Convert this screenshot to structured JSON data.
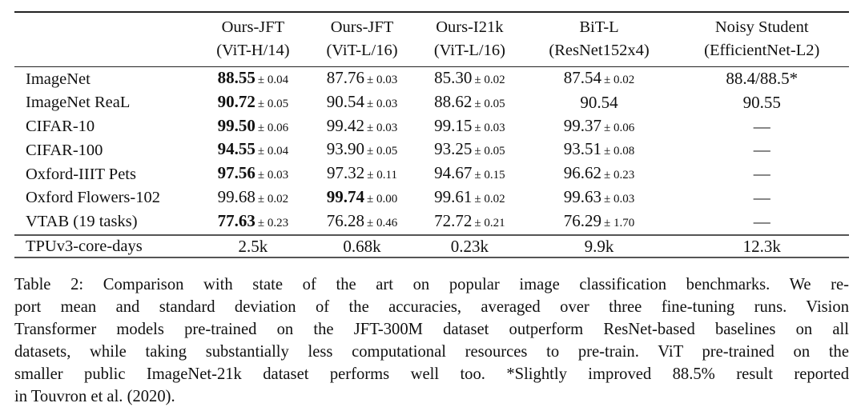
{
  "table": {
    "columns": [
      {
        "line1": "",
        "line2": ""
      },
      {
        "line1": "Ours-JFT",
        "line2": "(ViT-H/14)"
      },
      {
        "line1": "Ours-JFT",
        "line2": "(ViT-L/16)"
      },
      {
        "line1": "Ours-I21k",
        "line2": "(ViT-L/16)"
      },
      {
        "line1": "BiT-L",
        "line2": "(ResNet152x4)"
      },
      {
        "line1": "Noisy Student",
        "line2": "(EfficientNet-L2)"
      }
    ],
    "rows": [
      {
        "label": "ImageNet",
        "cells": [
          {
            "value": "88.55",
            "std": "± 0.04",
            "bold": true
          },
          {
            "value": "87.76",
            "std": "± 0.03"
          },
          {
            "value": "85.30",
            "std": "± 0.02"
          },
          {
            "value": "87.54",
            "std": "± 0.02"
          },
          {
            "value": "88.4/88.5*",
            "std": ""
          }
        ]
      },
      {
        "label": "ImageNet ReaL",
        "cells": [
          {
            "value": "90.72",
            "std": "± 0.05",
            "bold": true
          },
          {
            "value": "90.54",
            "std": "± 0.03"
          },
          {
            "value": "88.62",
            "std": "± 0.05"
          },
          {
            "value": "90.54",
            "std": ""
          },
          {
            "value": "90.55",
            "std": ""
          }
        ]
      },
      {
        "label": "CIFAR-10",
        "cells": [
          {
            "value": "99.50",
            "std": "± 0.06",
            "bold": true
          },
          {
            "value": "99.42",
            "std": "± 0.03"
          },
          {
            "value": "99.15",
            "std": "± 0.03"
          },
          {
            "value": "99.37",
            "std": "± 0.06"
          },
          {
            "value": "—",
            "std": ""
          }
        ]
      },
      {
        "label": "CIFAR-100",
        "cells": [
          {
            "value": "94.55",
            "std": "± 0.04",
            "bold": true
          },
          {
            "value": "93.90",
            "std": "± 0.05"
          },
          {
            "value": "93.25",
            "std": "± 0.05"
          },
          {
            "value": "93.51",
            "std": "± 0.08"
          },
          {
            "value": "—",
            "std": ""
          }
        ]
      },
      {
        "label": "Oxford-IIIT Pets",
        "cells": [
          {
            "value": "97.56",
            "std": "± 0.03",
            "bold": true
          },
          {
            "value": "97.32",
            "std": "± 0.11"
          },
          {
            "value": "94.67",
            "std": "± 0.15"
          },
          {
            "value": "96.62",
            "std": "± 0.23"
          },
          {
            "value": "—",
            "std": ""
          }
        ]
      },
      {
        "label": "Oxford Flowers-102",
        "cells": [
          {
            "value": "99.68",
            "std": "± 0.02"
          },
          {
            "value": "99.74",
            "std": "± 0.00",
            "bold": true
          },
          {
            "value": "99.61",
            "std": "± 0.02"
          },
          {
            "value": "99.63",
            "std": "± 0.03"
          },
          {
            "value": "—",
            "std": ""
          }
        ]
      },
      {
        "label": "VTAB (19 tasks)",
        "cells": [
          {
            "value": "77.63",
            "std": "± 0.23",
            "bold": true
          },
          {
            "value": "76.28",
            "std": "± 0.46"
          },
          {
            "value": "72.72",
            "std": "± 0.21"
          },
          {
            "value": "76.29",
            "std": "± 1.70"
          },
          {
            "value": "—",
            "std": ""
          }
        ]
      }
    ],
    "compute_row": {
      "label": "TPUv3-core-days",
      "values": [
        "2.5k",
        "0.68k",
        "0.23k",
        "9.9k",
        "12.3k"
      ]
    }
  },
  "caption": {
    "lines": [
      "Table 2:  Comparison with state of the art on popular image classification benchmarks. We re-",
      "port mean and standard deviation of the accuracies, averaged over three fine-tuning runs. Vision",
      "Transformer models pre-trained on the JFT-300M dataset outperform ResNet-based baselines on all",
      "datasets, while taking substantially less computational resources to pre-train. ViT pre-trained on the",
      "smaller public ImageNet-21k dataset performs well too. *Slightly improved 88.5% result reported",
      "in Touvron et al. (2020)."
    ]
  }
}
